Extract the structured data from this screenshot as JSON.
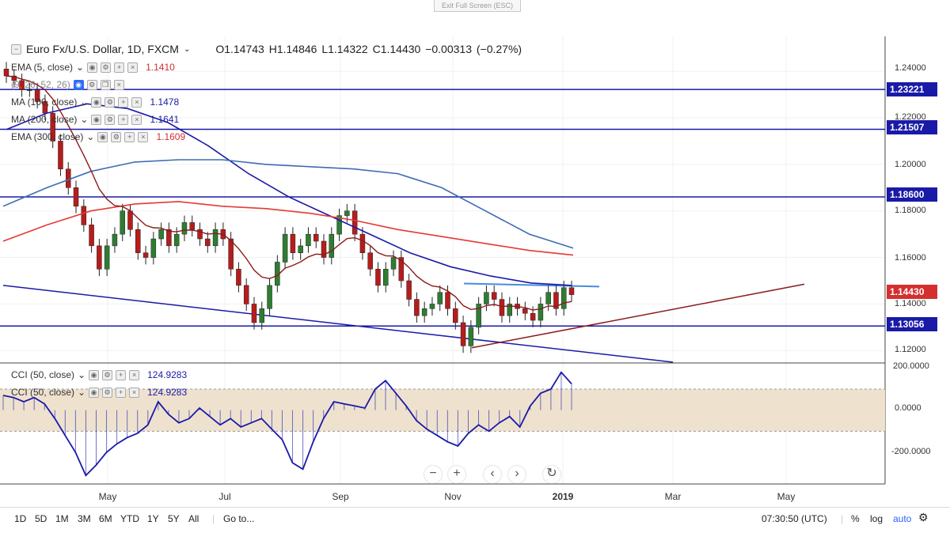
{
  "exit_label": "Exit Full Screen (ESC)",
  "symbol": {
    "name": "Euro Fx/U.S. Dollar, 1D, FXCM",
    "ohlc": "O1.14743  H1.14846  L1.14322  C1.14430  −0.00313 (−0.27%)"
  },
  "legend": [
    {
      "label": "EMA (5, close)",
      "value": "1.1410",
      "color": "#d32f2f"
    },
    {
      "label": "(9, 26, 52, 26)",
      "value": "",
      "color": "#2962ff"
    },
    {
      "label": "MA (100, close)",
      "value": "1.1478",
      "color": "#1a1aa8"
    },
    {
      "label": "MA (200, close)",
      "value": "1.1641",
      "color": "#1a1aa8"
    },
    {
      "label": "EMA (300, close)",
      "value": "1.1609",
      "color": "#d32f2f"
    }
  ],
  "cci_legend": [
    {
      "label": "CCI (50, close)",
      "value": "124.9283"
    },
    {
      "label": "CCI (50, close)",
      "value": "124.9283"
    }
  ],
  "price_tags": [
    {
      "text": "1.23221",
      "price": 1.23221,
      "bg": "#1a1aa8"
    },
    {
      "text": "1.21507",
      "price": 1.21507,
      "bg": "#1a1aa8"
    },
    {
      "text": "1.18600",
      "price": 1.186,
      "bg": "#1a1aa8"
    },
    {
      "text": "1.14430",
      "price": 1.1443,
      "bg": "#d32f2f"
    },
    {
      "text": "1.13056",
      "price": 1.13056,
      "bg": "#1a1aa8"
    }
  ],
  "y_ticks": [
    "1.24000",
    "1.22000",
    "1.20000",
    "1.18000",
    "1.16000",
    "1.14000",
    "1.12000"
  ],
  "cci_ticks": [
    "200.0000",
    "0.0000",
    "-200.0000"
  ],
  "x_ticks": [
    "May",
    "Jul",
    "Sep",
    "Nov",
    "2019",
    "Mar",
    "May"
  ],
  "timeframes": [
    "1D",
    "5D",
    "1M",
    "3M",
    "6M",
    "YTD",
    "1Y",
    "5Y",
    "All"
  ],
  "goto_label": "Go to...",
  "clock": "07:30:50 (UTC)",
  "toggles": [
    "%",
    "log",
    "auto"
  ],
  "nav": {
    "zoom_out": "−",
    "zoom_in": "+",
    "prev": "‹",
    "next": "›",
    "reset": "↻"
  },
  "colors": {
    "candle_up": "#2e7d32",
    "candle_down": "#b71c1c",
    "ma100": "#1a1aa8",
    "ma200": "#3d6bb5",
    "ema300": "#e53935",
    "ema50": "#8b1a1a",
    "level": "#1a1aa8",
    "cci": "#1a1aa8",
    "cci_band": "#eee2cf"
  },
  "chart_data": {
    "type": "line",
    "title": "Euro Fx/U.S. Dollar, 1D, FXCM",
    "ylim": [
      1.115,
      1.255
    ],
    "cci_ylim": [
      -350,
      220
    ],
    "horizontal_levels": [
      1.23221,
      1.21507,
      1.186,
      1.13056
    ],
    "series": [
      {
        "name": "Euro Fx/U.S. Dollar",
        "values": [
          1.238,
          1.236,
          1.232,
          1.232,
          1.227,
          1.222,
          1.21,
          1.198,
          1.19,
          1.182,
          1.174,
          1.165,
          1.155,
          1.165,
          1.17,
          1.18,
          1.172,
          1.162,
          1.16,
          1.168,
          1.172,
          1.165,
          1.17,
          1.175,
          1.172,
          1.168,
          1.165,
          1.172,
          1.168,
          1.155,
          1.148,
          1.14,
          1.132,
          1.138,
          1.148,
          1.158,
          1.17,
          1.162,
          1.165,
          1.17,
          1.167,
          1.16,
          1.17,
          1.178,
          1.18,
          1.17,
          1.162,
          1.155,
          1.148,
          1.155,
          1.16,
          1.15,
          1.142,
          1.135,
          1.138,
          1.14,
          1.145,
          1.138,
          1.132,
          1.122,
          1.13,
          1.14,
          1.145,
          1.142,
          1.135,
          1.14,
          1.138,
          1.136,
          1.133,
          1.14,
          1.145,
          1.138,
          1.147,
          1.144
        ]
      },
      {
        "name": "MA (100, close)",
        "values": [
          1.215,
          1.222,
          1.226,
          1.224,
          1.218,
          1.208,
          1.196,
          1.186,
          1.178,
          1.17,
          1.162,
          1.156,
          1.152,
          1.149,
          1.148
        ]
      },
      {
        "name": "MA (200, close)",
        "values": [
          1.182,
          1.19,
          1.197,
          1.201,
          1.202,
          1.202,
          1.2,
          1.199,
          1.198,
          1.196,
          1.19,
          1.18,
          1.17,
          1.164
        ]
      },
      {
        "name": "EMA (300, close)",
        "values": [
          1.167,
          1.174,
          1.18,
          1.183,
          1.184,
          1.182,
          1.181,
          1.179,
          1.176,
          1.172,
          1.169,
          1.166,
          1.163,
          1.161
        ]
      },
      {
        "name": "CCI (50, close)",
        "values": [
          70,
          60,
          40,
          60,
          30,
          -40,
          -120,
          -200,
          -310,
          -260,
          -200,
          -160,
          -130,
          -110,
          -70,
          40,
          -20,
          -60,
          -40,
          10,
          -30,
          -70,
          -40,
          -80,
          -60,
          -40,
          -90,
          -140,
          -250,
          -280,
          -150,
          -40,
          40,
          30,
          20,
          10,
          100,
          140,
          80,
          20,
          -50,
          -90,
          -120,
          -150,
          -170,
          -110,
          -70,
          -100,
          -60,
          -30,
          -80,
          20,
          80,
          100,
          180,
          124.9283
        ]
      }
    ]
  }
}
